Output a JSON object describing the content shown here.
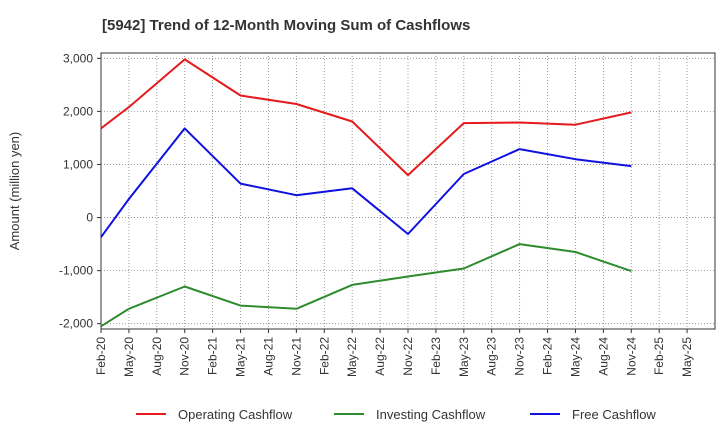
{
  "chart_data": {
    "type": "line",
    "title": "[5942]  Trend of 12-Month Moving Sum of Cashflows",
    "xlabel": "",
    "ylabel": "Amount (million yen)",
    "categories": [
      "Feb-20",
      "May-20",
      "Aug-20",
      "Nov-20",
      "Feb-21",
      "May-21",
      "Aug-21",
      "Nov-21",
      "Feb-22",
      "May-22",
      "Aug-22",
      "Nov-22",
      "Feb-23",
      "May-23",
      "Aug-23",
      "Nov-23",
      "Feb-24",
      "May-24",
      "Aug-24",
      "Nov-24",
      "Feb-25",
      "May-25"
    ],
    "ylim": [
      -2100,
      3100
    ],
    "yticks": [
      -2000,
      -1000,
      0,
      1000,
      2000,
      3000
    ],
    "ytick_labels": [
      "-2,000",
      "-1,000",
      "0",
      "1,000",
      "2,000",
      "3,000"
    ],
    "grid": true,
    "legend_position": "bottom",
    "series": [
      {
        "name": "Operating Cashflow",
        "color": "#e41a1c",
        "values": [
          1680,
          2080,
          null,
          2980,
          null,
          2300,
          null,
          2140,
          null,
          1810,
          null,
          800,
          null,
          1780,
          null,
          1790,
          null,
          1750,
          null,
          1980,
          null,
          null
        ]
      },
      {
        "name": "Investing Cashflow",
        "color": "#2e8b2e",
        "values": [
          -2050,
          -1720,
          null,
          -1300,
          null,
          -1660,
          null,
          -1720,
          null,
          -1270,
          null,
          -1110,
          null,
          -960,
          null,
          -500,
          null,
          -650,
          null,
          -1010,
          null,
          null
        ]
      },
      {
        "name": "Free Cashflow",
        "color": "#1010e0",
        "values": [
          -370,
          350,
          null,
          1680,
          null,
          640,
          null,
          420,
          null,
          550,
          null,
          -310,
          null,
          820,
          null,
          1290,
          null,
          1100,
          null,
          970,
          null,
          null
        ]
      }
    ]
  }
}
